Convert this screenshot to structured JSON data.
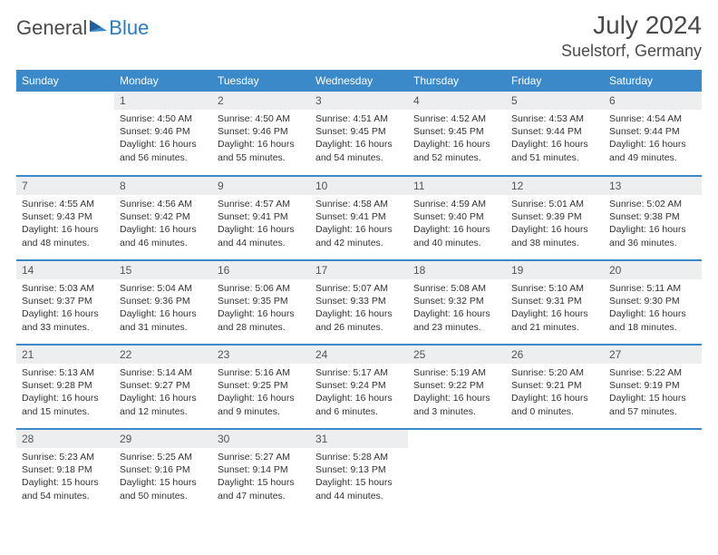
{
  "brand": {
    "part1": "General",
    "part2": "Blue"
  },
  "title": "July 2024",
  "location": "Suelstorf, Germany",
  "colors": {
    "header_bg": "#3b89c9",
    "header_text": "#ffffff",
    "daynum_bg": "#eceeef",
    "border": "#3b89c9",
    "text": "#333333",
    "brand_gray": "#4a4a4a",
    "brand_blue": "#2b7bbd"
  },
  "weekdays": [
    "Sunday",
    "Monday",
    "Tuesday",
    "Wednesday",
    "Thursday",
    "Friday",
    "Saturday"
  ],
  "weeks": [
    [
      {
        "n": "",
        "sr": "",
        "ss": "",
        "dl": ""
      },
      {
        "n": "1",
        "sr": "Sunrise: 4:50 AM",
        "ss": "Sunset: 9:46 PM",
        "dl": "Daylight: 16 hours and 56 minutes."
      },
      {
        "n": "2",
        "sr": "Sunrise: 4:50 AM",
        "ss": "Sunset: 9:46 PM",
        "dl": "Daylight: 16 hours and 55 minutes."
      },
      {
        "n": "3",
        "sr": "Sunrise: 4:51 AM",
        "ss": "Sunset: 9:45 PM",
        "dl": "Daylight: 16 hours and 54 minutes."
      },
      {
        "n": "4",
        "sr": "Sunrise: 4:52 AM",
        "ss": "Sunset: 9:45 PM",
        "dl": "Daylight: 16 hours and 52 minutes."
      },
      {
        "n": "5",
        "sr": "Sunrise: 4:53 AM",
        "ss": "Sunset: 9:44 PM",
        "dl": "Daylight: 16 hours and 51 minutes."
      },
      {
        "n": "6",
        "sr": "Sunrise: 4:54 AM",
        "ss": "Sunset: 9:44 PM",
        "dl": "Daylight: 16 hours and 49 minutes."
      }
    ],
    [
      {
        "n": "7",
        "sr": "Sunrise: 4:55 AM",
        "ss": "Sunset: 9:43 PM",
        "dl": "Daylight: 16 hours and 48 minutes."
      },
      {
        "n": "8",
        "sr": "Sunrise: 4:56 AM",
        "ss": "Sunset: 9:42 PM",
        "dl": "Daylight: 16 hours and 46 minutes."
      },
      {
        "n": "9",
        "sr": "Sunrise: 4:57 AM",
        "ss": "Sunset: 9:41 PM",
        "dl": "Daylight: 16 hours and 44 minutes."
      },
      {
        "n": "10",
        "sr": "Sunrise: 4:58 AM",
        "ss": "Sunset: 9:41 PM",
        "dl": "Daylight: 16 hours and 42 minutes."
      },
      {
        "n": "11",
        "sr": "Sunrise: 4:59 AM",
        "ss": "Sunset: 9:40 PM",
        "dl": "Daylight: 16 hours and 40 minutes."
      },
      {
        "n": "12",
        "sr": "Sunrise: 5:01 AM",
        "ss": "Sunset: 9:39 PM",
        "dl": "Daylight: 16 hours and 38 minutes."
      },
      {
        "n": "13",
        "sr": "Sunrise: 5:02 AM",
        "ss": "Sunset: 9:38 PM",
        "dl": "Daylight: 16 hours and 36 minutes."
      }
    ],
    [
      {
        "n": "14",
        "sr": "Sunrise: 5:03 AM",
        "ss": "Sunset: 9:37 PM",
        "dl": "Daylight: 16 hours and 33 minutes."
      },
      {
        "n": "15",
        "sr": "Sunrise: 5:04 AM",
        "ss": "Sunset: 9:36 PM",
        "dl": "Daylight: 16 hours and 31 minutes."
      },
      {
        "n": "16",
        "sr": "Sunrise: 5:06 AM",
        "ss": "Sunset: 9:35 PM",
        "dl": "Daylight: 16 hours and 28 minutes."
      },
      {
        "n": "17",
        "sr": "Sunrise: 5:07 AM",
        "ss": "Sunset: 9:33 PM",
        "dl": "Daylight: 16 hours and 26 minutes."
      },
      {
        "n": "18",
        "sr": "Sunrise: 5:08 AM",
        "ss": "Sunset: 9:32 PM",
        "dl": "Daylight: 16 hours and 23 minutes."
      },
      {
        "n": "19",
        "sr": "Sunrise: 5:10 AM",
        "ss": "Sunset: 9:31 PM",
        "dl": "Daylight: 16 hours and 21 minutes."
      },
      {
        "n": "20",
        "sr": "Sunrise: 5:11 AM",
        "ss": "Sunset: 9:30 PM",
        "dl": "Daylight: 16 hours and 18 minutes."
      }
    ],
    [
      {
        "n": "21",
        "sr": "Sunrise: 5:13 AM",
        "ss": "Sunset: 9:28 PM",
        "dl": "Daylight: 16 hours and 15 minutes."
      },
      {
        "n": "22",
        "sr": "Sunrise: 5:14 AM",
        "ss": "Sunset: 9:27 PM",
        "dl": "Daylight: 16 hours and 12 minutes."
      },
      {
        "n": "23",
        "sr": "Sunrise: 5:16 AM",
        "ss": "Sunset: 9:25 PM",
        "dl": "Daylight: 16 hours and 9 minutes."
      },
      {
        "n": "24",
        "sr": "Sunrise: 5:17 AM",
        "ss": "Sunset: 9:24 PM",
        "dl": "Daylight: 16 hours and 6 minutes."
      },
      {
        "n": "25",
        "sr": "Sunrise: 5:19 AM",
        "ss": "Sunset: 9:22 PM",
        "dl": "Daylight: 16 hours and 3 minutes."
      },
      {
        "n": "26",
        "sr": "Sunrise: 5:20 AM",
        "ss": "Sunset: 9:21 PM",
        "dl": "Daylight: 16 hours and 0 minutes."
      },
      {
        "n": "27",
        "sr": "Sunrise: 5:22 AM",
        "ss": "Sunset: 9:19 PM",
        "dl": "Daylight: 15 hours and 57 minutes."
      }
    ],
    [
      {
        "n": "28",
        "sr": "Sunrise: 5:23 AM",
        "ss": "Sunset: 9:18 PM",
        "dl": "Daylight: 15 hours and 54 minutes."
      },
      {
        "n": "29",
        "sr": "Sunrise: 5:25 AM",
        "ss": "Sunset: 9:16 PM",
        "dl": "Daylight: 15 hours and 50 minutes."
      },
      {
        "n": "30",
        "sr": "Sunrise: 5:27 AM",
        "ss": "Sunset: 9:14 PM",
        "dl": "Daylight: 15 hours and 47 minutes."
      },
      {
        "n": "31",
        "sr": "Sunrise: 5:28 AM",
        "ss": "Sunset: 9:13 PM",
        "dl": "Daylight: 15 hours and 44 minutes."
      },
      {
        "n": "",
        "sr": "",
        "ss": "",
        "dl": ""
      },
      {
        "n": "",
        "sr": "",
        "ss": "",
        "dl": ""
      },
      {
        "n": "",
        "sr": "",
        "ss": "",
        "dl": ""
      }
    ]
  ]
}
